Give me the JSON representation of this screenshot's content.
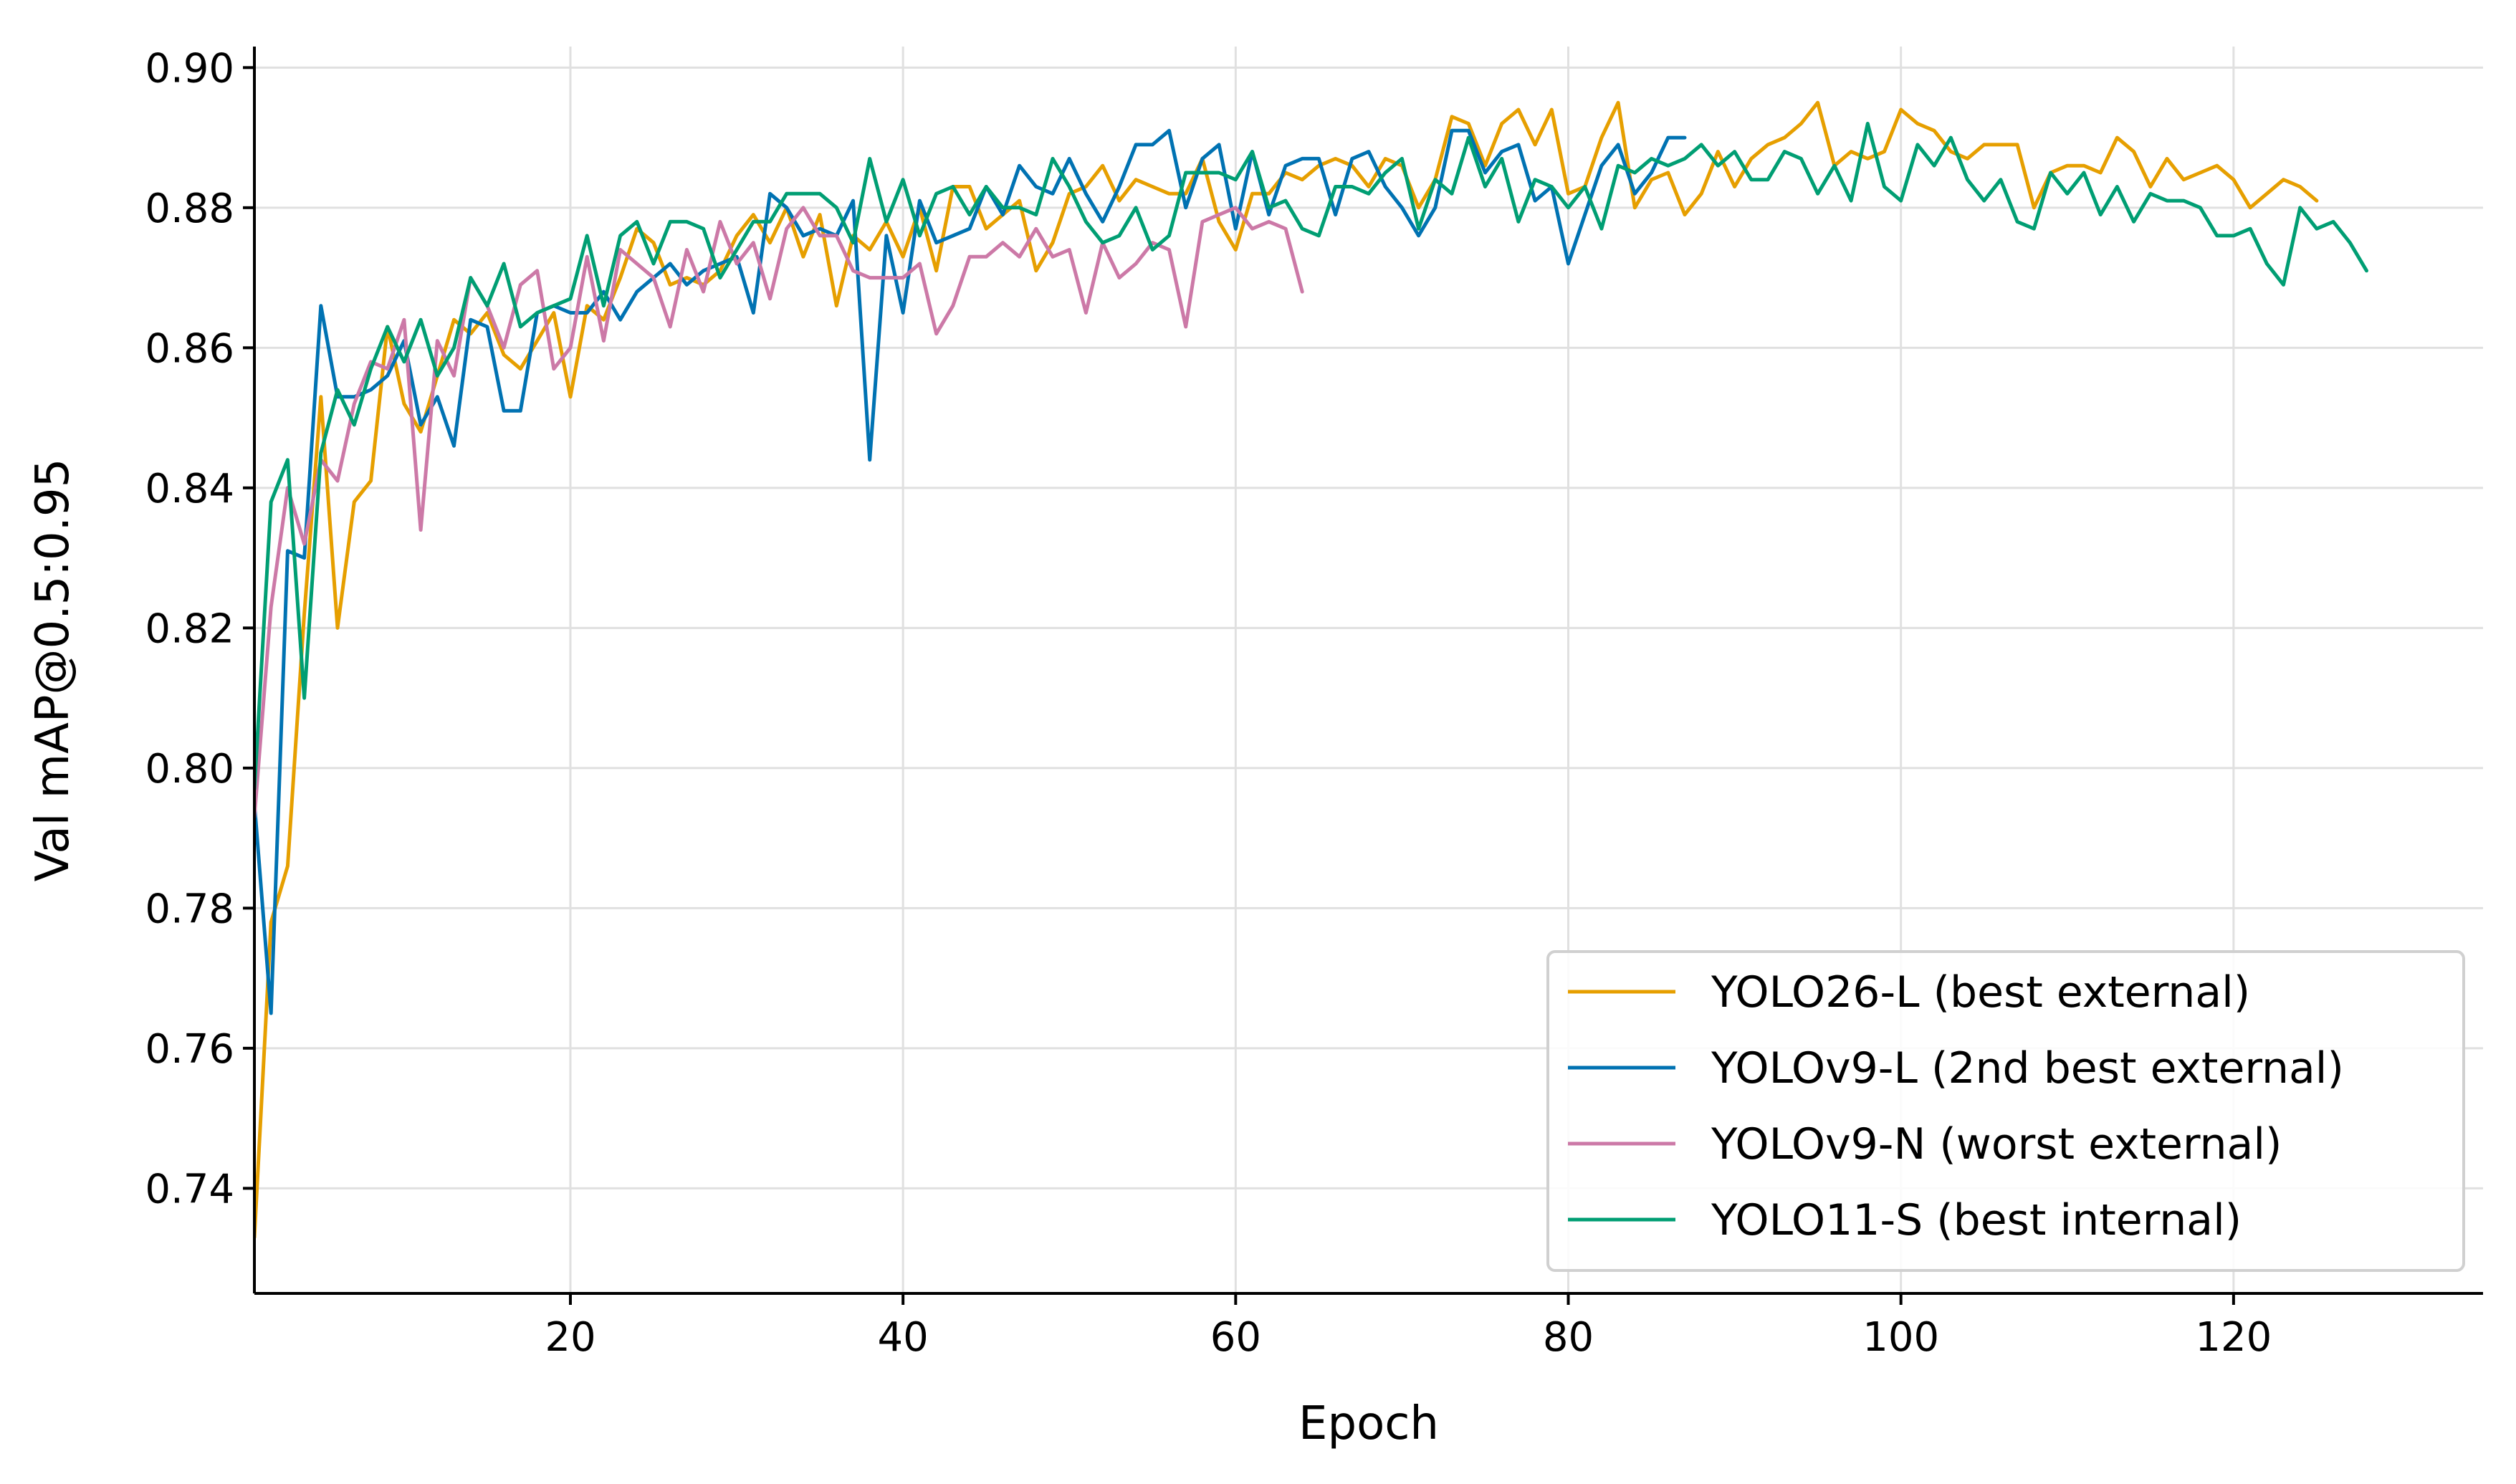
{
  "chart_data": {
    "type": "line",
    "title": "",
    "xlabel": "Epoch",
    "ylabel": "Val mAP@0.5:0.95",
    "xlim": [
      1,
      135
    ],
    "ylim": [
      0.725,
      0.903
    ],
    "xticks": [
      20,
      40,
      60,
      80,
      100,
      120
    ],
    "yticks": [
      0.74,
      0.76,
      0.78,
      0.8,
      0.82,
      0.84,
      0.86,
      0.88,
      0.9
    ],
    "xtick_labels": [
      "20",
      "40",
      "60",
      "80",
      "100",
      "120"
    ],
    "ytick_labels": [
      "0.74",
      "0.76",
      "0.78",
      "0.80",
      "0.82",
      "0.84",
      "0.86",
      "0.88",
      "0.90"
    ],
    "grid": true,
    "legend_position": "bottom-right",
    "series": [
      {
        "name": "YOLO26-L (best external)",
        "color": "#E69F00",
        "start": 1,
        "values": [
          0.733,
          0.778,
          0.786,
          0.822,
          0.853,
          0.82,
          0.838,
          0.841,
          0.863,
          0.852,
          0.848,
          0.856,
          0.864,
          0.862,
          0.865,
          0.859,
          0.857,
          0.861,
          0.865,
          0.853,
          0.866,
          0.864,
          0.87,
          0.877,
          0.875,
          0.869,
          0.87,
          0.869,
          0.871,
          0.876,
          0.879,
          0.875,
          0.88,
          0.873,
          0.879,
          0.866,
          0.876,
          0.874,
          0.878,
          0.873,
          0.88,
          0.871,
          0.883,
          0.883,
          0.877,
          0.879,
          0.881,
          0.871,
          0.875,
          0.882,
          0.883,
          0.886,
          0.881,
          0.884,
          0.883,
          0.882,
          0.882,
          0.887,
          0.878,
          0.874,
          0.882,
          0.882,
          0.885,
          0.884,
          0.886,
          0.887,
          0.886,
          0.883,
          0.887,
          0.886,
          0.88,
          0.884,
          0.893,
          0.892,
          0.886,
          0.892,
          0.894,
          0.889,
          0.894,
          0.882,
          0.883,
          0.89,
          0.895,
          0.88,
          0.884,
          0.885,
          0.879,
          0.882,
          0.888,
          0.883,
          0.887,
          0.889,
          0.89,
          0.892,
          0.895,
          0.886,
          0.888,
          0.887,
          0.888,
          0.894,
          0.892,
          0.891,
          0.888,
          0.887,
          0.889,
          0.889,
          0.889,
          0.88,
          0.885,
          0.886,
          0.886,
          0.885,
          0.89,
          0.888,
          0.883,
          0.887,
          0.884,
          0.885,
          0.886,
          0.884,
          0.88,
          0.882,
          0.884,
          0.883,
          0.881
        ]
      },
      {
        "name": "YOLOv9-L (2nd best external)",
        "color": "#0072B2",
        "start": 1,
        "values": [
          0.795,
          0.765,
          0.831,
          0.83,
          0.866,
          0.853,
          0.853,
          0.854,
          0.856,
          0.861,
          0.849,
          0.853,
          0.846,
          0.864,
          0.863,
          0.851,
          0.851,
          0.865,
          0.866,
          0.865,
          0.865,
          0.868,
          0.864,
          0.868,
          0.87,
          0.872,
          0.869,
          0.871,
          0.872,
          0.873,
          0.865,
          0.882,
          0.88,
          0.876,
          0.877,
          0.876,
          0.881,
          0.844,
          0.876,
          0.865,
          0.881,
          0.875,
          0.876,
          0.877,
          0.883,
          0.879,
          0.886,
          0.883,
          0.882,
          0.887,
          0.882,
          0.878,
          0.883,
          0.889,
          0.889,
          0.891,
          0.88,
          0.887,
          0.889,
          0.877,
          0.888,
          0.879,
          0.886,
          0.887,
          0.887,
          0.879,
          0.887,
          0.888,
          0.883,
          0.88,
          0.876,
          0.88,
          0.891,
          0.891,
          0.885,
          0.888,
          0.889,
          0.881,
          0.883,
          0.872,
          0.879,
          0.886,
          0.889,
          0.882,
          0.885,
          0.89,
          0.89
        ]
      },
      {
        "name": "YOLOv9-N (worst external)",
        "color": "#CC79A7",
        "start": 1,
        "values": [
          0.793,
          0.823,
          0.84,
          0.832,
          0.844,
          0.841,
          0.852,
          0.858,
          0.857,
          0.864,
          0.834,
          0.861,
          0.856,
          0.87,
          0.866,
          0.86,
          0.869,
          0.871,
          0.857,
          0.86,
          0.873,
          0.861,
          0.874,
          0.872,
          0.87,
          0.863,
          0.874,
          0.868,
          0.878,
          0.872,
          0.875,
          0.867,
          0.877,
          0.88,
          0.876,
          0.876,
          0.871,
          0.87,
          0.87,
          0.87,
          0.872,
          0.862,
          0.866,
          0.873,
          0.873,
          0.875,
          0.873,
          0.877,
          0.873,
          0.874,
          0.865,
          0.875,
          0.87,
          0.872,
          0.875,
          0.874,
          0.863,
          0.878,
          0.879,
          0.88,
          0.877,
          0.878,
          0.877,
          0.868
        ]
      },
      {
        "name": "YOLO11-S (best internal)",
        "color": "#009E73",
        "start": 1,
        "values": [
          0.797,
          0.838,
          0.844,
          0.81,
          0.845,
          0.854,
          0.849,
          0.857,
          0.863,
          0.858,
          0.864,
          0.856,
          0.86,
          0.87,
          0.866,
          0.872,
          0.863,
          0.865,
          0.866,
          0.867,
          0.876,
          0.866,
          0.876,
          0.878,
          0.872,
          0.878,
          0.878,
          0.877,
          0.87,
          0.874,
          0.878,
          0.878,
          0.882,
          0.882,
          0.882,
          0.88,
          0.875,
          0.887,
          0.878,
          0.884,
          0.876,
          0.882,
          0.883,
          0.879,
          0.883,
          0.88,
          0.88,
          0.879,
          0.887,
          0.883,
          0.878,
          0.875,
          0.876,
          0.88,
          0.874,
          0.876,
          0.885,
          0.885,
          0.885,
          0.884,
          0.888,
          0.88,
          0.881,
          0.877,
          0.876,
          0.883,
          0.883,
          0.882,
          0.885,
          0.887,
          0.877,
          0.884,
          0.882,
          0.89,
          0.883,
          0.887,
          0.878,
          0.884,
          0.883,
          0.88,
          0.883,
          0.877,
          0.886,
          0.885,
          0.887,
          0.886,
          0.887,
          0.889,
          0.886,
          0.888,
          0.884,
          0.884,
          0.888,
          0.887,
          0.882,
          0.886,
          0.881,
          0.892,
          0.883,
          0.881,
          0.889,
          0.886,
          0.89,
          0.884,
          0.881,
          0.884,
          0.878,
          0.877,
          0.885,
          0.882,
          0.885,
          0.879,
          0.883,
          0.878,
          0.882,
          0.881,
          0.881,
          0.88,
          0.876,
          0.876,
          0.877,
          0.872,
          0.869,
          0.88,
          0.877,
          0.878,
          0.875,
          0.871
        ]
      }
    ]
  }
}
